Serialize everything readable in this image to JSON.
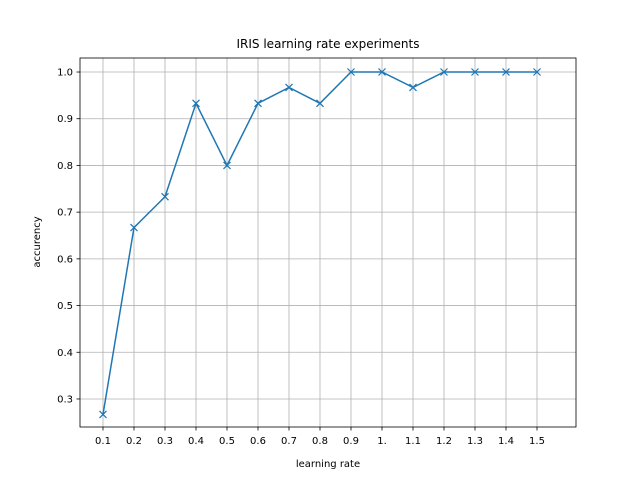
{
  "chart_data": {
    "type": "line",
    "title": "IRIS learning rate experiments",
    "xlabel": "learning rate",
    "ylabel": "accurency",
    "categories": [
      "0.1",
      "0.2",
      "0.3",
      "0.4",
      "0.5",
      "0.6",
      "0.7",
      "0.8",
      "0.9",
      "1.",
      "1.1",
      "1.2",
      "1.3",
      "1.4",
      "1.5"
    ],
    "series": [
      {
        "values": [
          0.267,
          0.667,
          0.733,
          0.933,
          0.8,
          0.933,
          0.967,
          0.933,
          1.0,
          1.0,
          0.967,
          1.0,
          1.0,
          1.0,
          1.0
        ],
        "color": "#1f77b4",
        "marker": "x"
      }
    ],
    "ylim": [
      0.24,
      1.03
    ],
    "yticks": [
      "0.3",
      "0.4",
      "0.5",
      "0.6",
      "0.7",
      "0.8",
      "0.9",
      "1.0"
    ],
    "grid": true
  }
}
